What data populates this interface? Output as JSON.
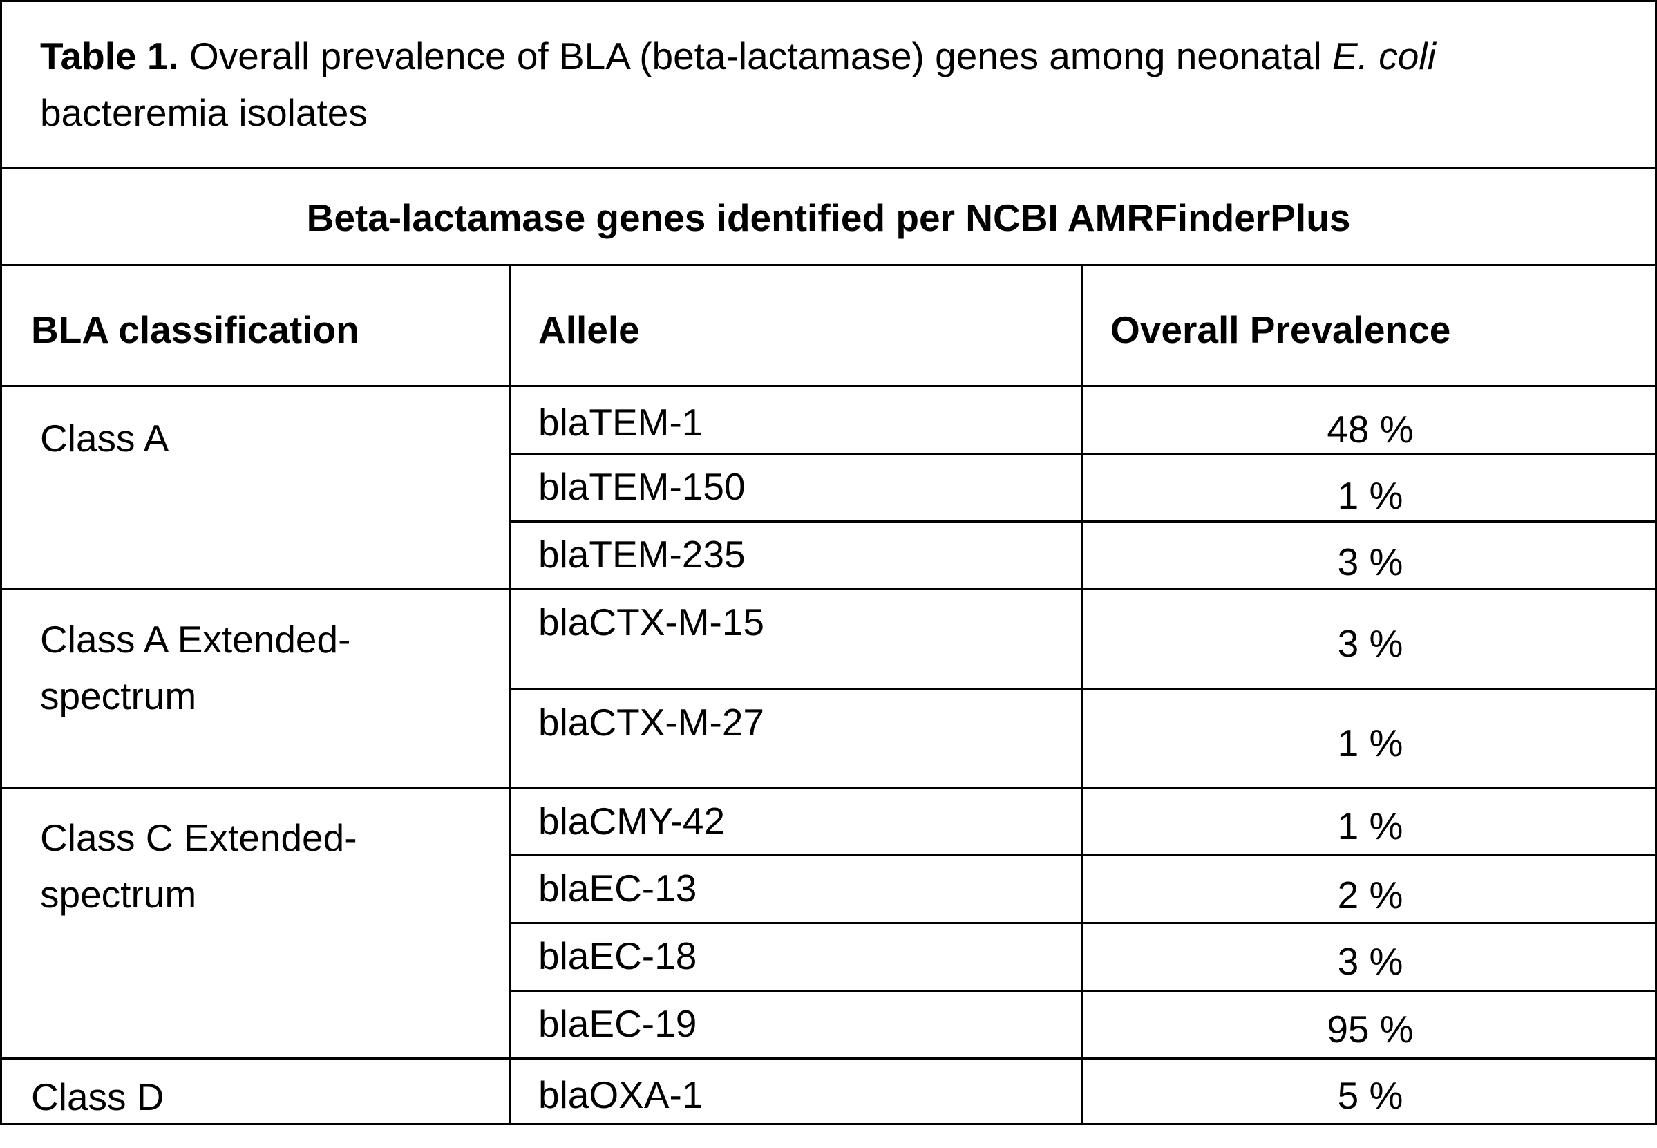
{
  "table": {
    "caption": {
      "label": "Table 1.",
      "text_before_italic": " Overall prevalence of BLA (beta-lactamase) genes among neonatal ",
      "italic": "E. coli",
      "text_after_italic": " bacteremia isolates"
    },
    "title": "Beta-lactamase genes identified per NCBI AMRFinderPlus",
    "headers": {
      "classification": "BLA classification",
      "allele": "Allele",
      "prevalence": "Overall Prevalence"
    },
    "groups": [
      {
        "classification": "Class A",
        "rows": [
          {
            "allele": "blaTEM-1",
            "prevalence": "48 %"
          },
          {
            "allele": "blaTEM-150",
            "prevalence": "1 %"
          },
          {
            "allele": "blaTEM-235",
            "prevalence": "3 %"
          }
        ]
      },
      {
        "classification": "Class A Extended-spectrum",
        "rows": [
          {
            "allele": "blaCTX-M-15",
            "prevalence": "3 %"
          },
          {
            "allele": "blaCTX-M-27",
            "prevalence": "1 %"
          }
        ]
      },
      {
        "classification": "Class C Extended-spectrum",
        "rows": [
          {
            "allele": "blaCMY-42",
            "prevalence": "1 %"
          },
          {
            "allele": "blaEC-13",
            "prevalence": "2 %"
          },
          {
            "allele": "blaEC-18",
            "prevalence": "3 %"
          },
          {
            "allele": "blaEC-19",
            "prevalence": "95 %"
          }
        ]
      },
      {
        "classification": "Class D",
        "rows": [
          {
            "allele": "blaOXA-1",
            "prevalence": "5 %"
          }
        ]
      }
    ]
  }
}
